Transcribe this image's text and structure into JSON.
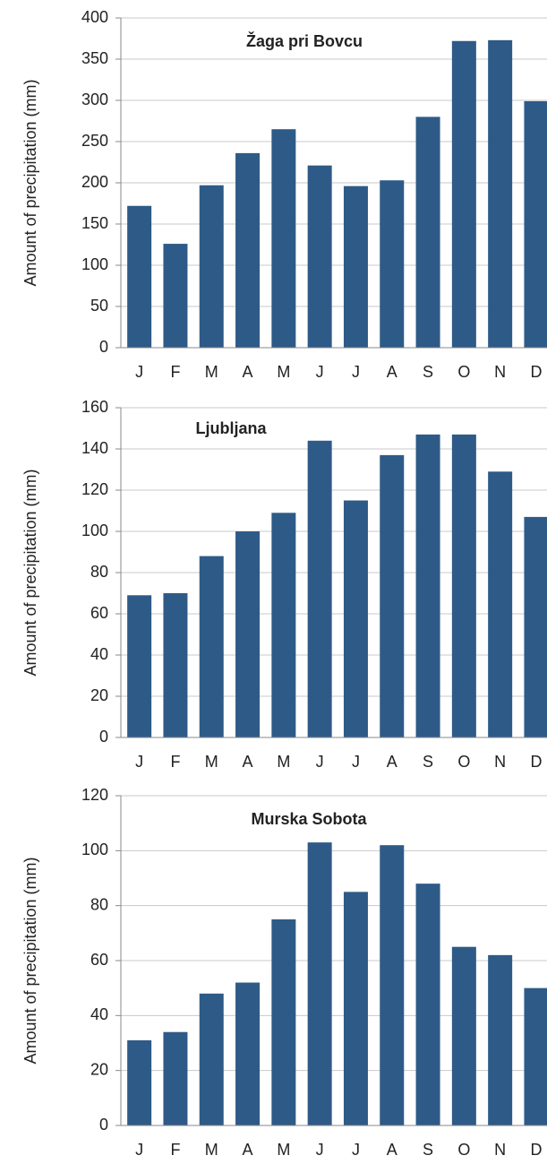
{
  "chart_data": [
    {
      "type": "bar",
      "title": "Žaga pri Bovcu",
      "y_label": "Amount of precipitation (mm)",
      "categories": [
        "J",
        "F",
        "M",
        "A",
        "M",
        "J",
        "J",
        "A",
        "S",
        "O",
        "N",
        "D"
      ],
      "values": [
        172,
        126,
        197,
        236,
        265,
        221,
        196,
        203,
        280,
        372,
        373,
        299
      ],
      "color": "#2e5a87",
      "ylim": [
        0,
        400
      ],
      "yticks": [
        0,
        50,
        100,
        150,
        200,
        250,
        300,
        350,
        400
      ],
      "grid": true
    },
    {
      "type": "bar",
      "title": "Ljubljana",
      "y_label": "Amount of precipitation (mm)",
      "categories": [
        "J",
        "F",
        "M",
        "A",
        "M",
        "J",
        "J",
        "A",
        "S",
        "O",
        "N",
        "D"
      ],
      "values": [
        69,
        70,
        88,
        100,
        109,
        144,
        115,
        137,
        147,
        147,
        129,
        107
      ],
      "color": "#2e5a87",
      "ylim": [
        0,
        160
      ],
      "yticks": [
        0,
        20,
        40,
        60,
        80,
        100,
        120,
        140,
        160
      ],
      "grid": true
    },
    {
      "type": "bar",
      "title": "Murska Sobota",
      "y_label": "Amount of precipitation (mm)",
      "categories": [
        "J",
        "F",
        "M",
        "A",
        "M",
        "J",
        "J",
        "A",
        "S",
        "O",
        "N",
        "D"
      ],
      "values": [
        31,
        34,
        48,
        52,
        75,
        103,
        85,
        102,
        88,
        65,
        62,
        50
      ],
      "color": "#2e5a87",
      "ylim": [
        0,
        120
      ],
      "yticks": [
        0,
        20,
        40,
        60,
        80,
        100,
        120
      ],
      "grid": true
    }
  ]
}
